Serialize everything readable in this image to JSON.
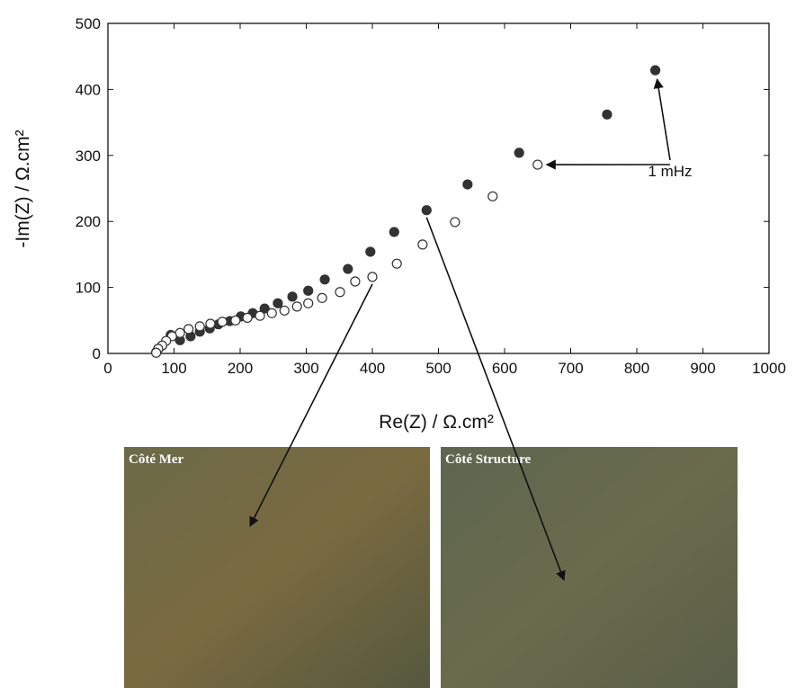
{
  "chart_data": {
    "type": "scatter",
    "x_label": "Re(Z) / Ω.cm²",
    "y_label": "-Im(Z) / Ω.cm²",
    "xlim": [
      0,
      1000
    ],
    "xticks": [
      0,
      100,
      200,
      300,
      400,
      500,
      600,
      700,
      800,
      900,
      1000
    ],
    "ylim": [
      0,
      500
    ],
    "yticks": [
      0,
      100,
      200,
      300,
      400,
      500
    ],
    "series": [
      {
        "color": "#333333",
        "fill": "#333333",
        "x": [
          828,
          755,
          622,
          544,
          482,
          433,
          397,
          363,
          328,
          303,
          279,
          257,
          237,
          219,
          201,
          184,
          167,
          154,
          139,
          125,
          109,
          95,
          82,
          76,
          73
        ],
        "values": [
          429,
          362,
          304,
          256,
          217,
          184,
          154,
          128,
          112,
          95,
          86,
          76,
          68,
          61,
          56,
          49,
          44,
          38,
          33,
          26,
          20,
          28,
          12,
          7,
          2
        ]
      },
      {
        "color": "#333333",
        "fill": "#ffffff",
        "x": [
          650,
          582,
          525,
          476,
          437,
          400,
          374,
          351,
          324,
          303,
          286,
          267,
          248,
          230,
          211,
          193,
          173,
          155,
          139,
          122,
          109,
          97,
          88,
          82,
          76,
          73
        ],
        "values": [
          286,
          238,
          199,
          165,
          136,
          116,
          109,
          93,
          84,
          76,
          71,
          65,
          61,
          57,
          54,
          50,
          48,
          45,
          41,
          37,
          31,
          26,
          19,
          12,
          7,
          1
        ]
      }
    ],
    "annotation": "1 mHz",
    "photos": [
      "Côté Mer",
      "Côté Structure"
    ]
  }
}
